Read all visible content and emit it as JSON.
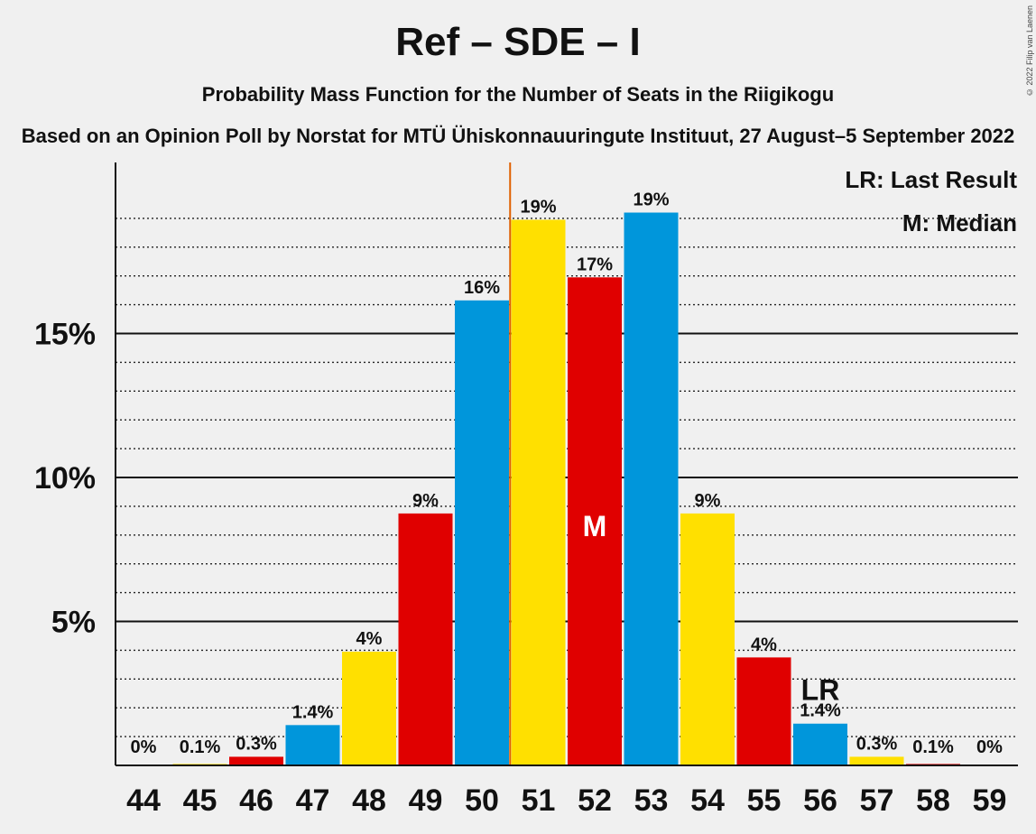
{
  "title": "Ref – SDE – I",
  "subtitle": "Probability Mass Function for the Number of Seats in the Riigikogu",
  "subtitle2": "Based on an Opinion Poll by Norstat for MTÜ Ühiskonnauuringute Instituut, 27 August–5 September 2022",
  "copyright": "© 2022 Filip van Laenen",
  "legend": {
    "last_result": "LR: Last Result",
    "median": "M: Median"
  },
  "markers": {
    "median_label": "M",
    "last_result_label": "LR"
  },
  "colors": {
    "blue": "#0096db",
    "yellow": "#ffe000",
    "red": "#e00000",
    "last_result_line": "#e06000",
    "axis": "#111111"
  },
  "chart_data": {
    "type": "bar",
    "categories": [
      "44",
      "45",
      "46",
      "47",
      "48",
      "49",
      "50",
      "51",
      "52",
      "53",
      "54",
      "55",
      "56",
      "57",
      "58",
      "59"
    ],
    "values": [
      0,
      0.05,
      0.3,
      1.4,
      3.95,
      8.75,
      16.15,
      18.95,
      16.95,
      19.2,
      8.75,
      3.75,
      1.45,
      0.3,
      0.05,
      0
    ],
    "data_labels": [
      "0%",
      "0.1%",
      "0.3%",
      "1.4%",
      "4%",
      "9%",
      "16%",
      "19%",
      "17%",
      "19%",
      "9%",
      "4%",
      "1.4%",
      "0.3%",
      "0.1%",
      "0%"
    ],
    "bar_colors": [
      "blue",
      "yellow",
      "red",
      "blue",
      "yellow",
      "red",
      "blue",
      "yellow",
      "red",
      "blue",
      "yellow",
      "red",
      "blue",
      "yellow",
      "red",
      "blue"
    ],
    "y_ticks": [
      5,
      10,
      15
    ],
    "y_tick_labels": [
      "5%",
      "10%",
      "15%"
    ],
    "ylim": [
      0,
      21.2
    ],
    "median_category": "52",
    "last_result_category": "56",
    "last_result_line_between": [
      "50",
      "51"
    ],
    "grid": "dotted every 1%, solid at 5% steps",
    "legend_position": "top-right"
  }
}
